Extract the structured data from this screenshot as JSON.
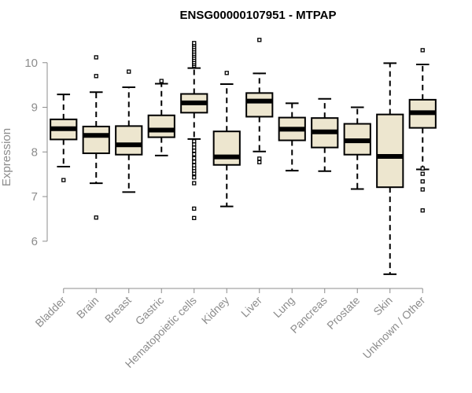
{
  "chart_data": {
    "type": "box",
    "title": "ENSG00000107951 - MTPAP",
    "xlabel": "",
    "ylabel": "Expression",
    "ylim": [
      5.1,
      10.7
    ],
    "yticks": [
      6,
      7,
      8,
      9,
      10
    ],
    "ytick_labels": [
      "6",
      "7",
      "8",
      "9",
      "10"
    ],
    "grid": false,
    "legend": "none",
    "colors": {
      "box_fill": "#ede6cf",
      "box_stroke": "#000000",
      "median": "#000000",
      "axis": "#8c8c8c"
    },
    "categories": [
      "Bladder",
      "Brain",
      "Breast",
      "Gastric",
      "Hematopoietic cells",
      "Kidney",
      "Liver",
      "Lung",
      "Pancreas",
      "Prostate",
      "Skin",
      "Unknown / Other"
    ],
    "boxes": [
      {
        "category": "Bladder",
        "whisker_low": 7.67,
        "q1": 8.28,
        "median": 8.52,
        "q3": 8.73,
        "whisker_high": 9.29,
        "outliers": [
          7.37
        ]
      },
      {
        "category": "Brain",
        "whisker_low": 7.3,
        "q1": 7.97,
        "median": 8.37,
        "q3": 8.57,
        "whisker_high": 9.34,
        "outliers": [
          6.53,
          9.7,
          10.12
        ]
      },
      {
        "category": "Breast",
        "whisker_low": 7.1,
        "q1": 7.94,
        "median": 8.16,
        "q3": 8.58,
        "whisker_high": 9.45,
        "outliers": [
          9.8
        ]
      },
      {
        "category": "Gastric",
        "whisker_low": 7.92,
        "q1": 8.33,
        "median": 8.49,
        "q3": 8.82,
        "whisker_high": 9.53,
        "outliers": [
          9.59
        ]
      },
      {
        "category": "Hematopoietic cells",
        "whisker_low": 8.29,
        "q1": 8.88,
        "median": 9.1,
        "q3": 9.3,
        "whisker_high": 9.88,
        "outliers": [
          6.52,
          6.73,
          7.3,
          7.43,
          7.52,
          7.58,
          7.64,
          7.7,
          7.78,
          7.86,
          7.95,
          8.03,
          8.1,
          8.17,
          8.24,
          9.93,
          9.97,
          10.01,
          10.06,
          10.11,
          10.16,
          10.2,
          10.25,
          10.3,
          10.35,
          10.4,
          10.44
        ]
      },
      {
        "category": "Kidney",
        "whisker_low": 6.78,
        "q1": 7.71,
        "median": 7.89,
        "q3": 8.46,
        "whisker_high": 9.52,
        "outliers": [
          9.77
        ]
      },
      {
        "category": "Liver",
        "whisker_low": 8.01,
        "q1": 8.79,
        "median": 9.14,
        "q3": 9.32,
        "whisker_high": 9.76,
        "outliers": [
          7.77,
          7.85,
          10.51
        ]
      },
      {
        "category": "Lung",
        "whisker_low": 7.58,
        "q1": 8.26,
        "median": 8.51,
        "q3": 8.77,
        "whisker_high": 9.09,
        "outliers": []
      },
      {
        "category": "Pancreas",
        "whisker_low": 7.57,
        "q1": 8.1,
        "median": 8.45,
        "q3": 8.76,
        "whisker_high": 9.19,
        "outliers": []
      },
      {
        "category": "Prostate",
        "whisker_low": 7.17,
        "q1": 7.94,
        "median": 8.25,
        "q3": 8.63,
        "whisker_high": 9.0,
        "outliers": []
      },
      {
        "category": "Skin",
        "whisker_low": 5.26,
        "q1": 7.21,
        "median": 7.9,
        "q3": 8.84,
        "whisker_high": 9.99,
        "outliers": []
      },
      {
        "category": "Unknown / Other",
        "whisker_low": 7.61,
        "q1": 8.54,
        "median": 8.88,
        "q3": 9.17,
        "whisker_high": 9.96,
        "outliers": [
          6.69,
          7.16,
          7.34,
          7.51,
          7.63,
          10.28
        ]
      }
    ]
  }
}
